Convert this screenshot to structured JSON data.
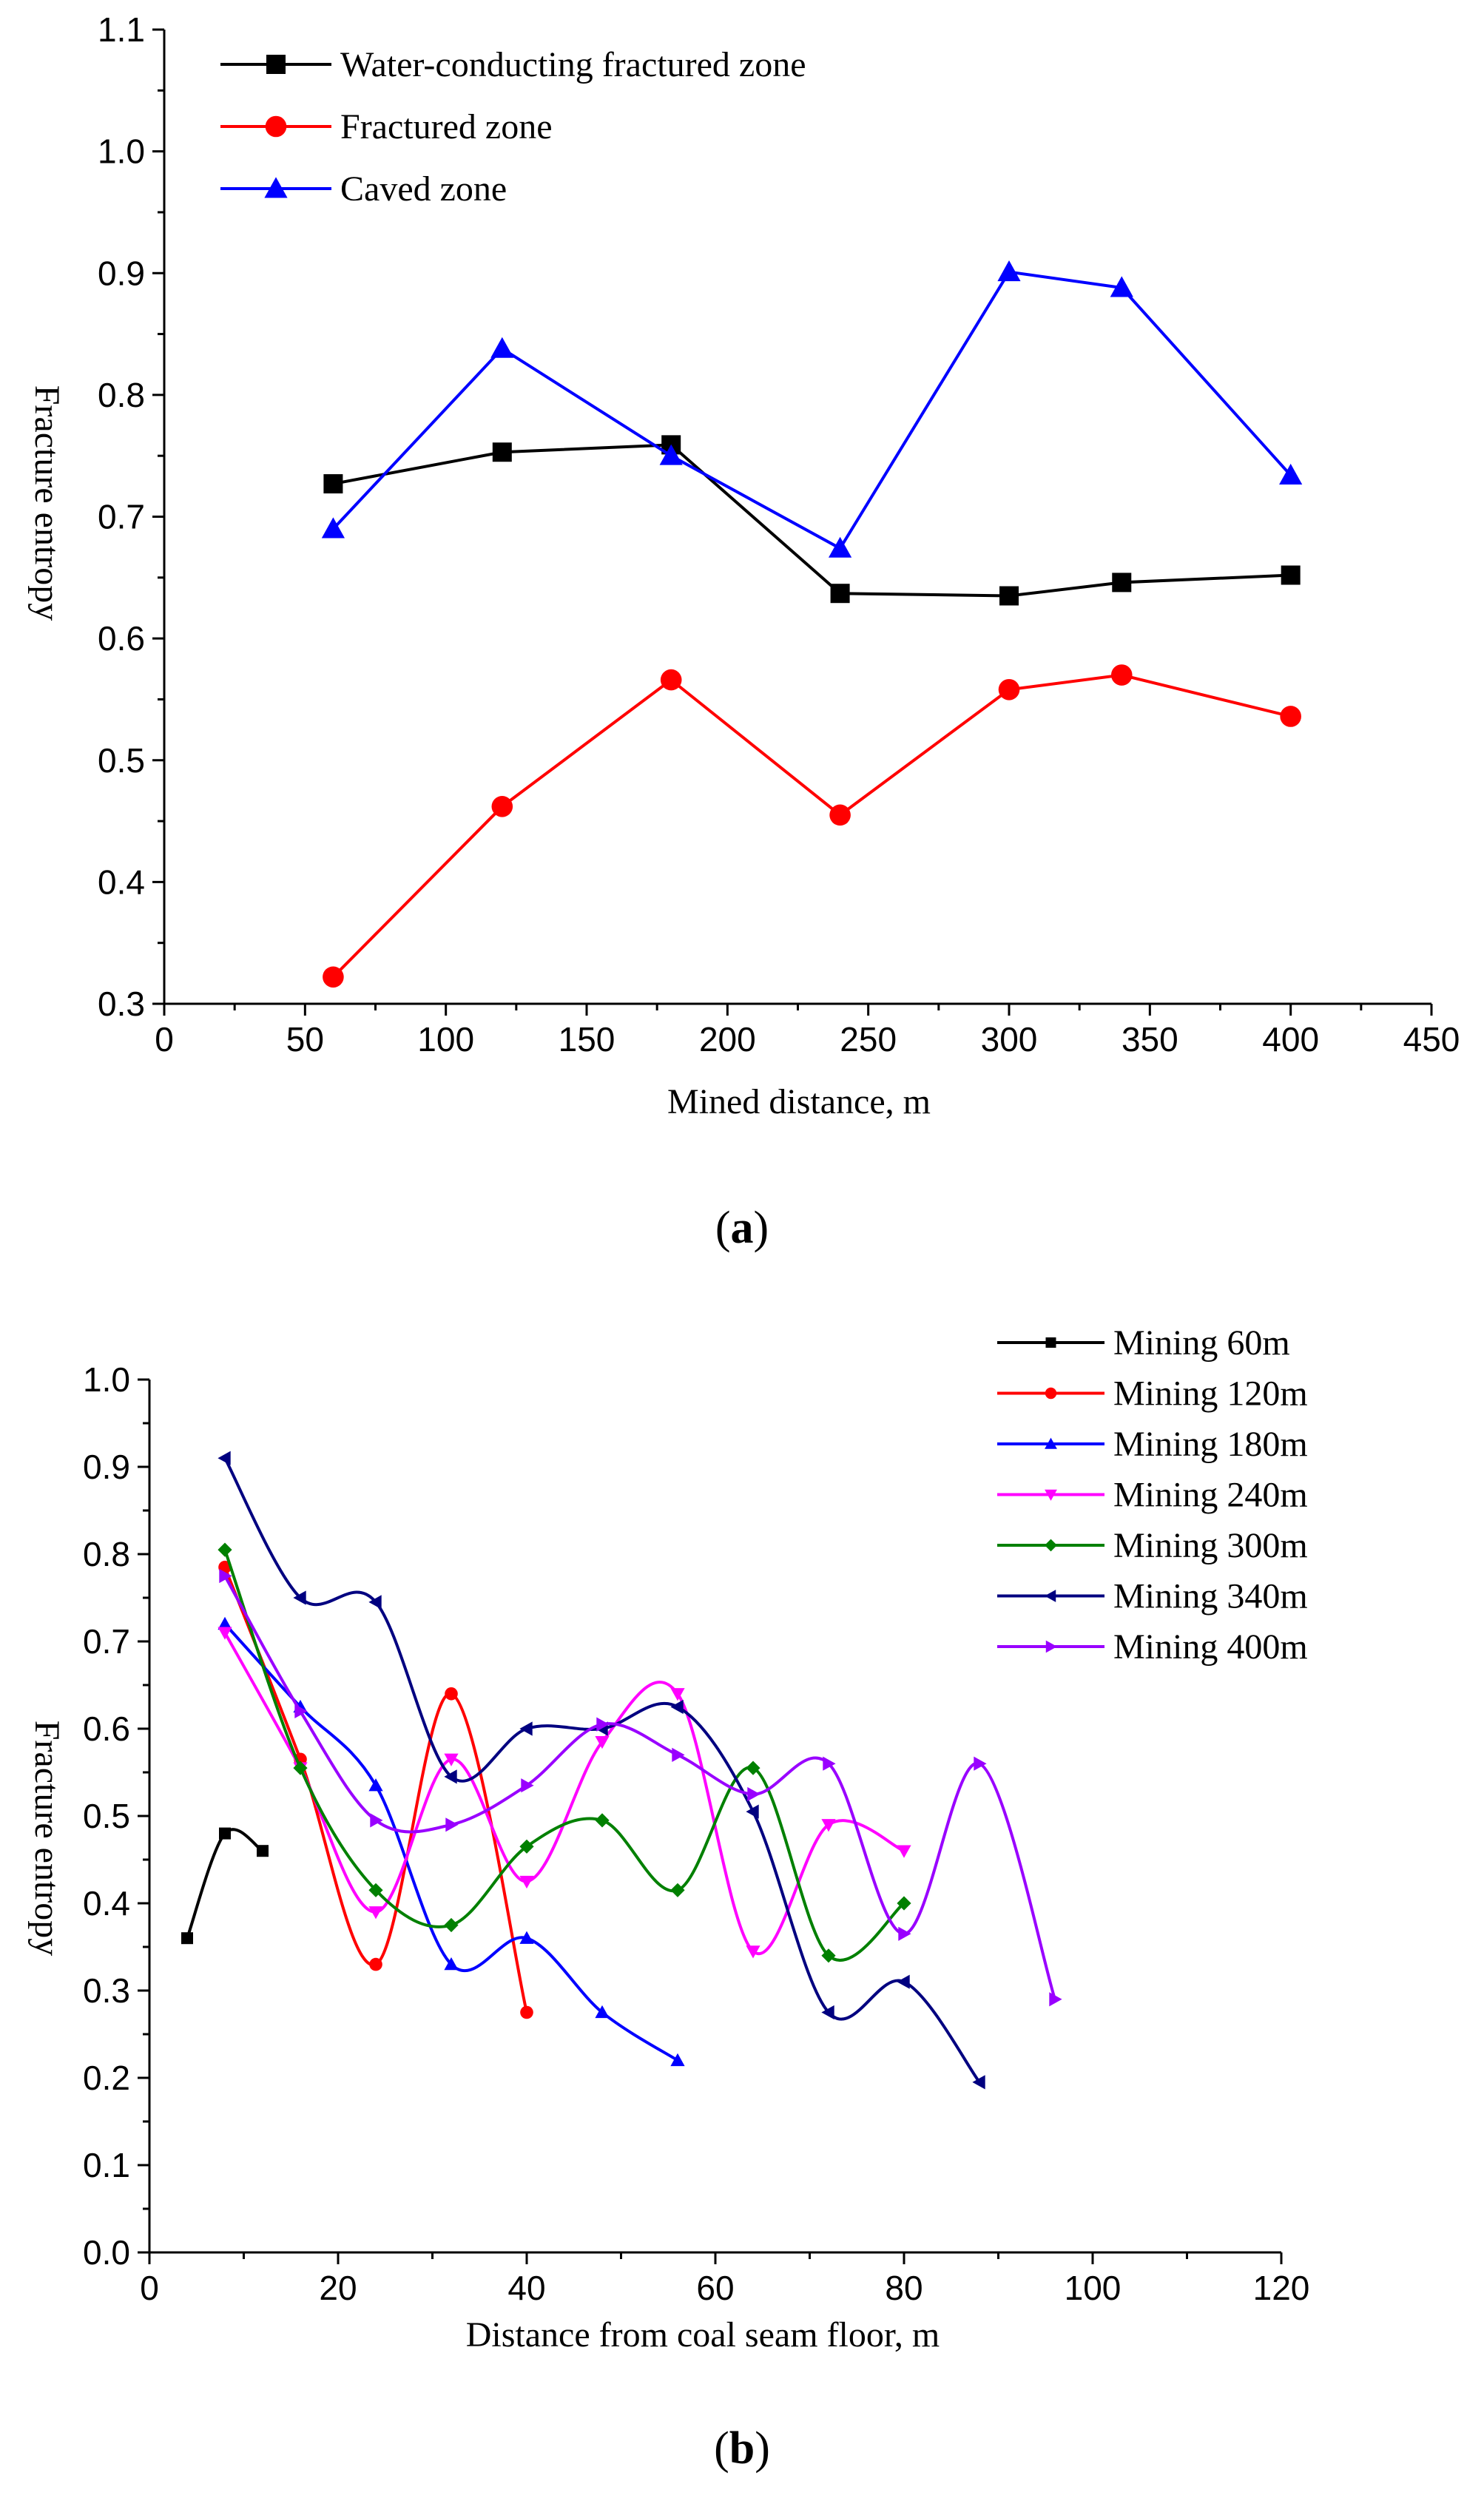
{
  "chart_data": [
    {
      "type": "line",
      "caption": "a",
      "xlabel": "Mined distance, m",
      "ylabel": "Fracture entropy",
      "xlim": [
        0,
        450
      ],
      "ylim": [
        0.3,
        1.1
      ],
      "xticks": [
        "0",
        "50",
        "100",
        "150",
        "200",
        "250",
        "300",
        "350",
        "400",
        "450"
      ],
      "yticks": [
        "0.3",
        "0.4",
        "0.5",
        "0.6",
        "0.7",
        "0.8",
        "0.9",
        "1.0",
        "1.1"
      ],
      "legend_position": "top-left",
      "series": [
        {
          "name": "Water-conducting fractured zone",
          "color": "#000000",
          "marker": "square",
          "x": [
            60,
            120,
            180,
            240,
            300,
            340,
            400
          ],
          "y": [
            0.727,
            0.753,
            0.759,
            0.637,
            0.635,
            0.646,
            0.652
          ]
        },
        {
          "name": "Fractured zone",
          "color": "#ff0000",
          "marker": "circle",
          "x": [
            60,
            120,
            180,
            240,
            300,
            340,
            400
          ],
          "y": [
            0.322,
            0.462,
            0.566,
            0.455,
            0.558,
            0.57,
            0.536
          ]
        },
        {
          "name": "Caved zone",
          "color": "#0000ff",
          "marker": "triangle-up",
          "x": [
            60,
            120,
            180,
            240,
            300,
            340,
            400
          ],
          "y": [
            0.69,
            0.838,
            0.75,
            0.674,
            0.901,
            0.888,
            0.734
          ]
        }
      ]
    },
    {
      "type": "line",
      "caption": "b",
      "xlabel": "Distance from coal seam floor, m",
      "ylabel": "Fracture entropy",
      "xlim": [
        0,
        120
      ],
      "ylim": [
        0.0,
        1.0
      ],
      "xticks": [
        "0",
        "20",
        "40",
        "60",
        "80",
        "100",
        "120"
      ],
      "yticks": [
        "0.0",
        "0.1",
        "0.2",
        "0.3",
        "0.4",
        "0.5",
        "0.6",
        "0.7",
        "0.8",
        "0.9",
        "1.0"
      ],
      "legend_position": "top-right",
      "series": [
        {
          "name": "Mining 60m",
          "color": "#000000",
          "marker": "square",
          "x": [
            4,
            8,
            12
          ],
          "y": [
            0.36,
            0.48,
            0.46
          ]
        },
        {
          "name": "Mining 120m",
          "color": "#ff0000",
          "marker": "circle",
          "x": [
            8,
            16,
            24,
            32,
            40
          ],
          "y": [
            0.785,
            0.565,
            0.33,
            0.64,
            0.275
          ]
        },
        {
          "name": "Mining 180m",
          "color": "#0000ff",
          "marker": "triangle-up",
          "x": [
            8,
            16,
            24,
            32,
            40,
            48,
            56
          ],
          "y": [
            0.72,
            0.625,
            0.535,
            0.33,
            0.36,
            0.275,
            0.22
          ]
        },
        {
          "name": "Mining 240m",
          "color": "#ff00ff",
          "marker": "triangle-down",
          "x": [
            8,
            16,
            24,
            32,
            40,
            48,
            56,
            64,
            72,
            80
          ],
          "y": [
            0.71,
            0.555,
            0.39,
            0.565,
            0.425,
            0.585,
            0.64,
            0.345,
            0.49,
            0.46
          ]
        },
        {
          "name": "Mining 300m",
          "color": "#008000",
          "marker": "diamond",
          "x": [
            8,
            16,
            24,
            32,
            40,
            48,
            56,
            64,
            72,
            80
          ],
          "y": [
            0.805,
            0.555,
            0.415,
            0.375,
            0.465,
            0.495,
            0.415,
            0.555,
            0.34,
            0.4
          ]
        },
        {
          "name": "Mining 340m",
          "color": "#000080",
          "marker": "triangle-left",
          "x": [
            8,
            16,
            24,
            32,
            40,
            48,
            56,
            64,
            72,
            80,
            88
          ],
          "y": [
            0.91,
            0.75,
            0.745,
            0.545,
            0.6,
            0.6,
            0.625,
            0.505,
            0.275,
            0.31,
            0.195
          ]
        },
        {
          "name": "Mining 400m",
          "color": "#9900ff",
          "marker": "triangle-right",
          "x": [
            8,
            16,
            24,
            32,
            40,
            48,
            56,
            64,
            72,
            80,
            88,
            96
          ],
          "y": [
            0.775,
            0.62,
            0.495,
            0.49,
            0.535,
            0.605,
            0.57,
            0.525,
            0.56,
            0.365,
            0.56,
            0.29
          ]
        }
      ]
    }
  ]
}
